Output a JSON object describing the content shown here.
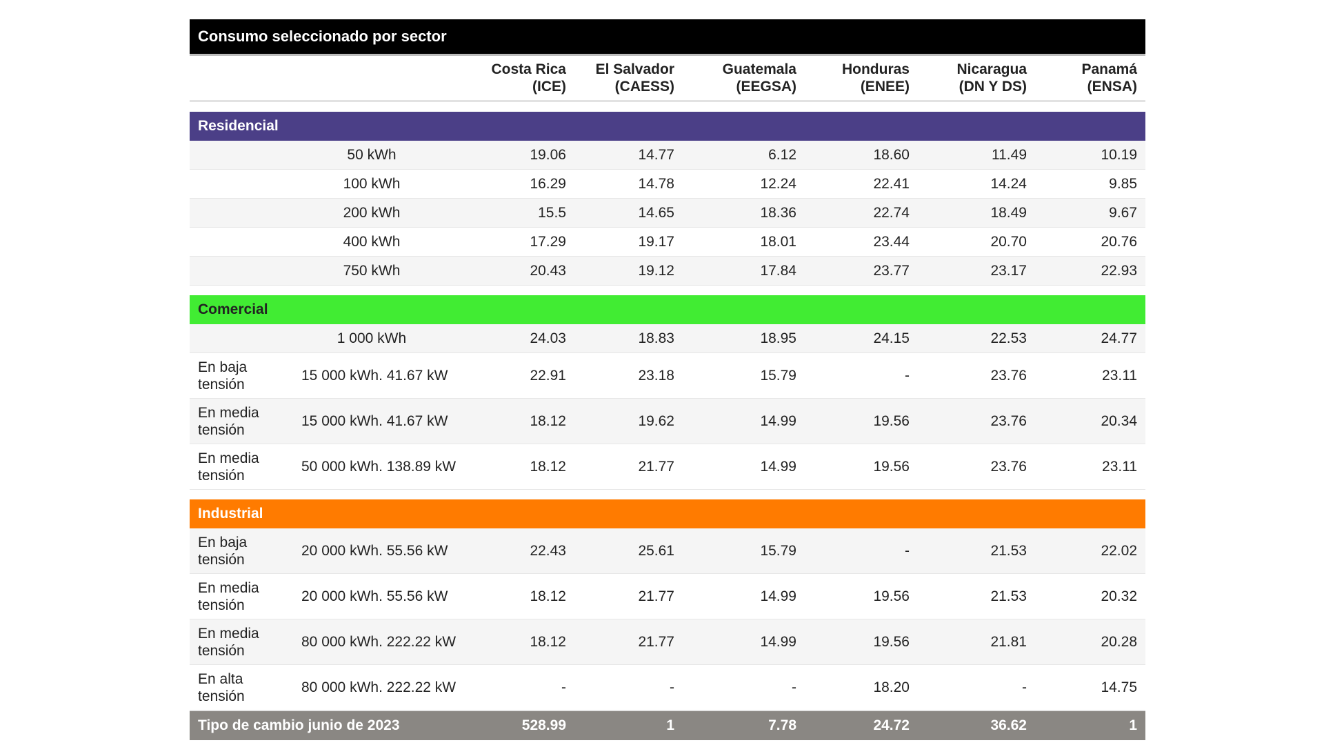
{
  "title": "Consumo seleccionado por sector",
  "columns": [
    {
      "line1": "Costa Rica",
      "line2": "(ICE)"
    },
    {
      "line1": "El Salvador",
      "line2": "(CAESS)"
    },
    {
      "line1": "Guatemala",
      "line2": "(EEGSA)"
    },
    {
      "line1": "Honduras",
      "line2": "(ENEE)"
    },
    {
      "line1": "Nicaragua",
      "line2": "(DN Y DS)"
    },
    {
      "line1": "Panamá",
      "line2": "(ENSA)"
    }
  ],
  "sections": [
    {
      "name": "Residencial",
      "color": "#4b3f87",
      "rows": [
        {
          "category": "",
          "description": "50 kWh",
          "values": [
            "19.06",
            "14.77",
            "6.12",
            "18.60",
            "11.49",
            "10.19"
          ]
        },
        {
          "category": "",
          "description": "100 kWh",
          "values": [
            "16.29",
            "14.78",
            "12.24",
            "22.41",
            "14.24",
            "9.85"
          ]
        },
        {
          "category": "",
          "description": "200 kWh",
          "values": [
            "15.5",
            "14.65",
            "18.36",
            "22.74",
            "18.49",
            "9.67"
          ]
        },
        {
          "category": "",
          "description": "400 kWh",
          "values": [
            "17.29",
            "19.17",
            "18.01",
            "23.44",
            "20.70",
            "20.76"
          ]
        },
        {
          "category": "",
          "description": "750 kWh",
          "values": [
            "20.43",
            "19.12",
            "17.84",
            "23.77",
            "23.17",
            "22.93"
          ]
        }
      ]
    },
    {
      "name": "Comercial",
      "color": "#41ec33",
      "rows": [
        {
          "category": "",
          "description": "1 000 kWh",
          "values": [
            "24.03",
            "18.83",
            "18.95",
            "24.15",
            "22.53",
            "24.77"
          ]
        },
        {
          "category": "En baja tensión",
          "description": "15 000 kWh. 41.67 kW",
          "values": [
            "22.91",
            "23.18",
            "15.79",
            "-",
            "23.76",
            "23.11"
          ]
        },
        {
          "category": "En media tensión",
          "description": "15 000 kWh. 41.67 kW",
          "values": [
            "18.12",
            "19.62",
            "14.99",
            "19.56",
            "23.76",
            "20.34"
          ]
        },
        {
          "category": "En media tensión",
          "description": "50 000 kWh. 138.89 kW",
          "values": [
            "18.12",
            "21.77",
            "14.99",
            "19.56",
            "23.76",
            "23.11"
          ]
        }
      ]
    },
    {
      "name": "Industrial",
      "color": "#ff7b00",
      "rows": [
        {
          "category": "En baja tensión",
          "description": "20 000 kWh. 55.56 kW",
          "values": [
            "22.43",
            "25.61",
            "15.79",
            "-",
            "21.53",
            "22.02"
          ]
        },
        {
          "category": "En media tensión",
          "description": "20 000 kWh. 55.56 kW",
          "values": [
            "18.12",
            "21.77",
            "14.99",
            "19.56",
            "21.53",
            "20.32"
          ]
        },
        {
          "category": "En media tensión",
          "description": "80 000 kWh. 222.22 kW",
          "values": [
            "18.12",
            "21.77",
            "14.99",
            "19.56",
            "21.81",
            "20.28"
          ]
        },
        {
          "category": "En alta tensión",
          "description": "80 000 kWh. 222.22 kW",
          "values": [
            "-",
            "-",
            "-",
            "18.20",
            "-",
            "14.75"
          ]
        }
      ]
    }
  ],
  "footer": {
    "label": "Tipo de cambio junio de 2023",
    "values": [
      "528.99",
      "1",
      "7.78",
      "24.72",
      "36.62",
      "1"
    ]
  }
}
